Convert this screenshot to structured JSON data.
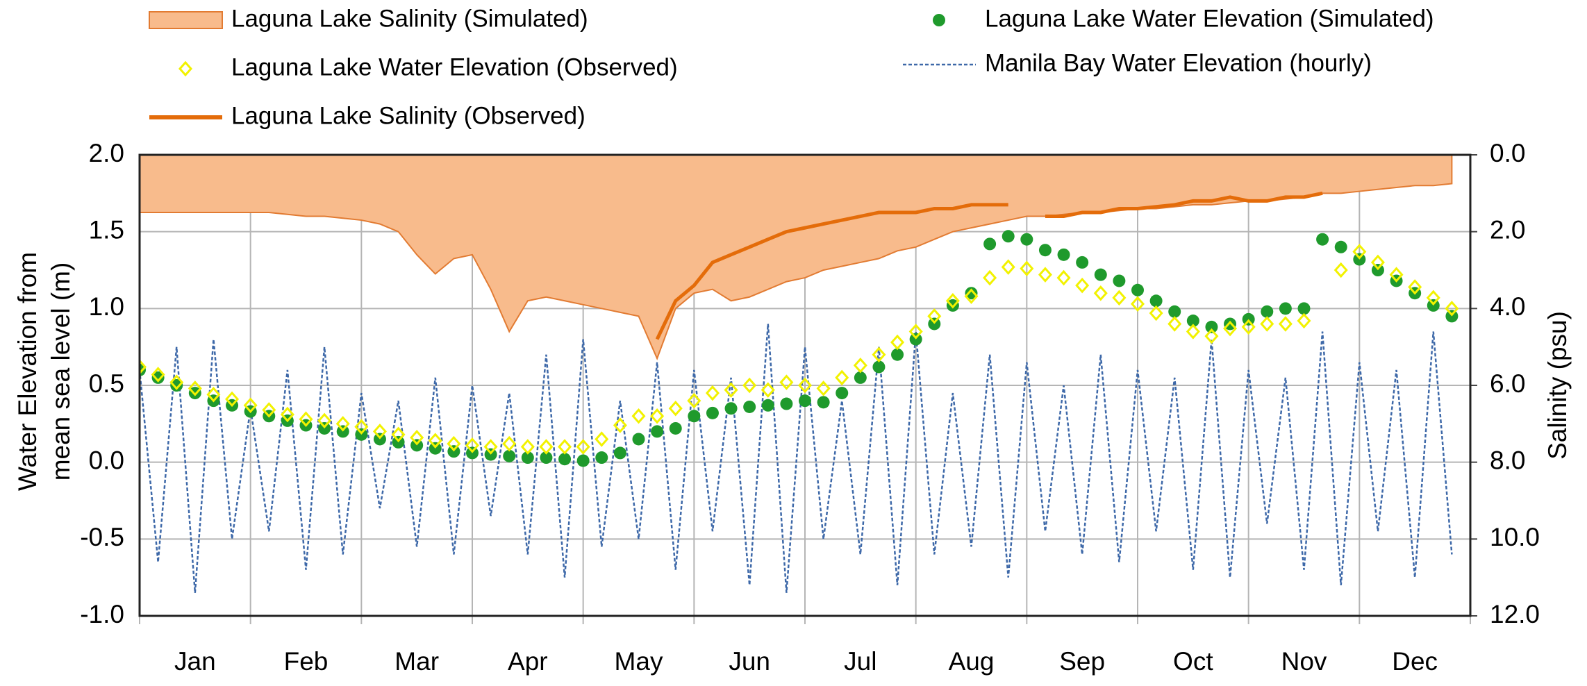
{
  "chart_data": {
    "type": "line",
    "y_label_lines": [
      "Water Elevation from",
      "mean sea level (m)"
    ],
    "y2_label": "Salinity (psu)",
    "categories": [
      null,
      null,
      null,
      "Jan",
      null,
      null,
      null,
      null,
      null,
      "Feb",
      null,
      null,
      null,
      null,
      null,
      "Mar",
      null,
      null,
      null,
      null,
      null,
      "Apr",
      null,
      null,
      null,
      null,
      null,
      "May",
      null,
      null,
      null,
      null,
      null,
      "Jun",
      null,
      null,
      null,
      null,
      null,
      "Jul",
      null,
      null,
      null,
      null,
      null,
      "Aug",
      null,
      null,
      null,
      null,
      null,
      "Sep",
      null,
      null,
      null,
      null,
      null,
      "Oct",
      null,
      null,
      null,
      null,
      null,
      "Nov",
      null,
      null,
      null,
      null,
      null,
      "Dec",
      null,
      null
    ],
    "ylim": [
      -1,
      2
    ],
    "yticks": [
      {
        "value": 2,
        "label": "2.0"
      },
      {
        "value": 1.5,
        "label": "1.5"
      },
      {
        "value": 1,
        "label": "1.0"
      },
      {
        "value": 0.5,
        "label": "0.5"
      },
      {
        "value": 0,
        "label": "0.0"
      },
      {
        "value": -0.5,
        "label": "-0.5"
      },
      {
        "value": -1,
        "label": "-1.0"
      }
    ],
    "y2lim": [
      12,
      0
    ],
    "y2ticks": [
      {
        "value": 0,
        "label": "0.0"
      },
      {
        "value": 2,
        "label": "2.0"
      },
      {
        "value": 4,
        "label": "4.0"
      },
      {
        "value": 6,
        "label": "6.0"
      },
      {
        "value": 8,
        "label": "8.0"
      },
      {
        "value": 10,
        "label": "10.0"
      },
      {
        "value": 12,
        "label": "12.0"
      }
    ],
    "grid": true,
    "series": [
      {
        "name": "Manila Bay Water Elevation (hourly)",
        "color": "#3d68a8",
        "mark": "dashed-line",
        "values": [
          0.6,
          -0.65,
          0.75,
          -0.85,
          0.8,
          -0.5,
          0.35,
          -0.45,
          0.6,
          -0.7,
          0.75,
          -0.6,
          0.45,
          -0.3,
          0.4,
          -0.55,
          0.55,
          -0.6,
          0.5,
          -0.35,
          0.45,
          -0.6,
          0.7,
          -0.75,
          0.8,
          -0.55,
          0.4,
          -0.5,
          0.65,
          -0.7,
          0.6,
          -0.45,
          0.55,
          -0.8,
          0.9,
          -0.85,
          0.75,
          -0.5,
          0.4,
          -0.6,
          0.75,
          -0.8,
          0.85,
          -0.6,
          0.45,
          -0.55,
          0.7,
          -0.75,
          0.65,
          -0.45,
          0.5,
          -0.6,
          0.7,
          -0.65,
          0.6,
          -0.45,
          0.55,
          -0.7,
          0.8,
          -0.75,
          0.6,
          -0.4,
          0.55,
          -0.7,
          0.85,
          -0.8,
          0.65,
          -0.45,
          0.6,
          -0.75,
          0.85,
          -0.6
        ]
      },
      {
        "name": "Laguna Lake Salinity (Simulated)",
        "color": "#f8bb8c",
        "stroke": "#e27b32",
        "mark": "area",
        "axis": "y2",
        "values": [
          1.5,
          1.5,
          1.5,
          1.5,
          1.5,
          1.5,
          1.5,
          1.5,
          1.55,
          1.6,
          1.6,
          1.65,
          1.7,
          1.8,
          2.0,
          2.6,
          3.1,
          2.7,
          2.6,
          3.5,
          4.6,
          3.8,
          3.7,
          3.8,
          3.9,
          4.0,
          4.1,
          4.2,
          5.3,
          4.0,
          3.6,
          3.5,
          3.8,
          3.7,
          3.5,
          3.3,
          3.2,
          3.0,
          2.9,
          2.8,
          2.7,
          2.5,
          2.4,
          2.2,
          2.0,
          1.9,
          1.8,
          1.7,
          1.6,
          1.6,
          1.55,
          1.5,
          1.5,
          1.45,
          1.4,
          1.4,
          1.35,
          1.3,
          1.3,
          1.25,
          1.2,
          1.2,
          1.15,
          1.1,
          1.0,
          1.0,
          0.95,
          0.9,
          0.85,
          0.8,
          0.8,
          0.75
        ]
      },
      {
        "name": "Laguna Lake Salinity (Observed)",
        "color": "#e46c0a",
        "mark": "line",
        "axis": "y2",
        "values": [
          null,
          null,
          null,
          null,
          null,
          null,
          null,
          null,
          null,
          null,
          null,
          null,
          null,
          null,
          null,
          null,
          null,
          null,
          null,
          null,
          null,
          null,
          null,
          null,
          null,
          null,
          null,
          null,
          4.8,
          3.8,
          3.4,
          2.8,
          2.6,
          2.4,
          2.2,
          2.0,
          1.9,
          1.8,
          1.7,
          1.6,
          1.5,
          1.5,
          1.5,
          1.4,
          1.4,
          1.3,
          1.3,
          1.3,
          null,
          1.6,
          1.6,
          1.5,
          1.5,
          1.4,
          1.4,
          1.35,
          1.3,
          1.2,
          1.2,
          1.1,
          1.2,
          1.2,
          1.1,
          1.1,
          1.0,
          null,
          null,
          null,
          null,
          null,
          null,
          null
        ]
      },
      {
        "name": "Laguna Lake Water Elevation (Simulated)",
        "color": "#1f9a2c",
        "mark": "dot",
        "values": [
          0.6,
          0.55,
          0.5,
          0.45,
          0.4,
          0.37,
          0.33,
          0.3,
          0.27,
          0.24,
          0.22,
          0.2,
          0.18,
          0.15,
          0.13,
          0.11,
          0.09,
          0.07,
          0.06,
          0.05,
          0.04,
          0.03,
          0.03,
          0.02,
          0.01,
          0.03,
          0.06,
          0.15,
          0.2,
          0.22,
          0.3,
          0.32,
          0.35,
          0.36,
          0.37,
          0.38,
          0.4,
          0.39,
          0.45,
          0.55,
          0.62,
          0.7,
          0.8,
          0.9,
          1.02,
          1.1,
          1.42,
          1.47,
          1.45,
          1.38,
          1.35,
          1.3,
          1.22,
          1.18,
          1.12,
          1.05,
          0.98,
          0.92,
          0.88,
          0.9,
          0.93,
          0.98,
          1.0,
          1.0,
          1.45,
          1.4,
          1.32,
          1.25,
          1.18,
          1.1,
          1.02,
          0.95
        ]
      },
      {
        "name": "Laguna Lake Water Elevation (Observed)",
        "color": "#f2f200",
        "mark": "diamond",
        "values": [
          0.62,
          0.57,
          0.52,
          0.48,
          0.44,
          0.41,
          0.37,
          0.34,
          0.31,
          0.28,
          0.27,
          0.25,
          0.23,
          0.2,
          0.18,
          0.16,
          0.14,
          0.12,
          0.11,
          0.1,
          0.12,
          0.1,
          0.1,
          0.1,
          0.1,
          0.15,
          0.24,
          0.3,
          0.3,
          0.35,
          0.4,
          0.45,
          0.47,
          0.5,
          0.47,
          0.52,
          0.5,
          0.48,
          0.55,
          0.63,
          0.7,
          0.78,
          0.85,
          0.95,
          1.05,
          1.08,
          1.2,
          1.27,
          1.26,
          1.22,
          1.2,
          1.15,
          1.1,
          1.07,
          1.03,
          0.97,
          0.9,
          0.85,
          0.82,
          0.87,
          0.88,
          0.9,
          0.9,
          0.92,
          null,
          1.25,
          1.37,
          1.3,
          1.22,
          1.14,
          1.07,
          1.0
        ]
      }
    ]
  }
}
